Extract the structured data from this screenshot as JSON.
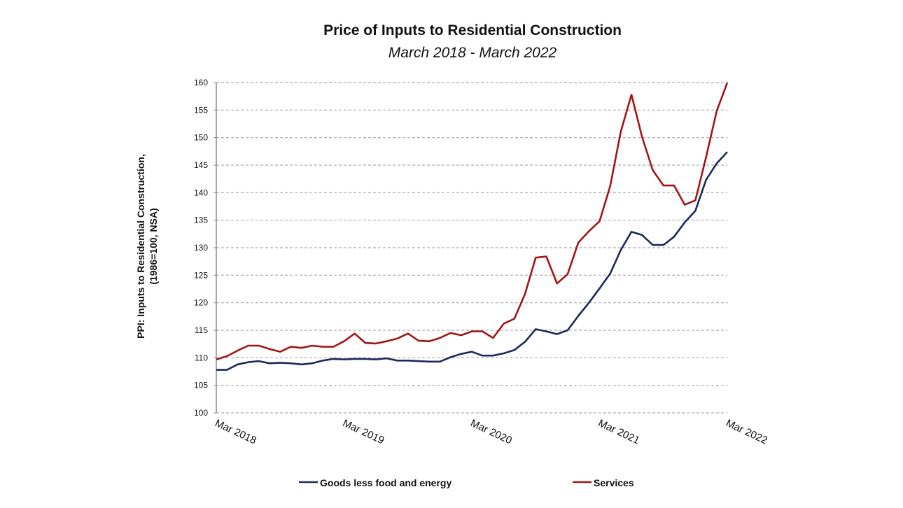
{
  "chart_data": {
    "type": "line",
    "title": "Price of Inputs to Residential Construction",
    "subtitle": "March 2018 - March 2022",
    "ylabel": "PPI: Inputs to Residential Construction,",
    "ylabel2": "(1986=100, NSA)",
    "xlabel": "",
    "ylim": [
      100,
      160
    ],
    "yticks": [
      "100",
      "105",
      "110",
      "115",
      "120",
      "125",
      "130",
      "135",
      "140",
      "145",
      "150",
      "155",
      "160"
    ],
    "xtick_labels": [
      "Mar 2018",
      "Mar 2019",
      "Mar 2020",
      "Mar 2021",
      "Mar 2022"
    ],
    "xtick_month_index": [
      0,
      12,
      24,
      36,
      48
    ],
    "grid": "horizontal dashed",
    "legend": "bottom",
    "x_frequency": "monthly, Mar 2018 - Mar 2022",
    "series": [
      {
        "name": "Goods less food and energy",
        "color": "#1a2a5c",
        "values": [
          107.8,
          107.8,
          108.8,
          109.2,
          109.4,
          109.0,
          109.1,
          109.0,
          108.8,
          109.0,
          109.5,
          109.8,
          109.7,
          109.8,
          109.8,
          109.7,
          109.9,
          109.5,
          109.5,
          109.4,
          109.3,
          109.3,
          110.1,
          110.7,
          111.1,
          110.4,
          110.4,
          110.8,
          111.4,
          112.9,
          115.2,
          114.8,
          114.3,
          115.0,
          117.6,
          120.0,
          122.6,
          125.3,
          129.6,
          132.9,
          132.3,
          130.5,
          130.5,
          132.0,
          134.6,
          136.7,
          142.3,
          145.3,
          147.4
        ]
      },
      {
        "name": "Services",
        "color": "#a31515",
        "values": [
          109.7,
          110.3,
          111.3,
          112.2,
          112.2,
          111.6,
          111.1,
          112.0,
          111.8,
          112.2,
          112.0,
          112.0,
          113.0,
          114.4,
          112.7,
          112.6,
          113.0,
          113.5,
          114.4,
          113.1,
          113.0,
          113.6,
          114.5,
          114.1,
          114.8,
          114.8,
          113.6,
          116.2,
          117.1,
          121.6,
          128.2,
          128.4,
          123.5,
          125.2,
          130.9,
          133.0,
          134.8,
          141.2,
          151.1,
          157.8,
          150.1,
          144.1,
          141.3,
          141.3,
          137.8,
          138.6,
          146.4,
          154.8,
          160.0
        ]
      }
    ]
  }
}
